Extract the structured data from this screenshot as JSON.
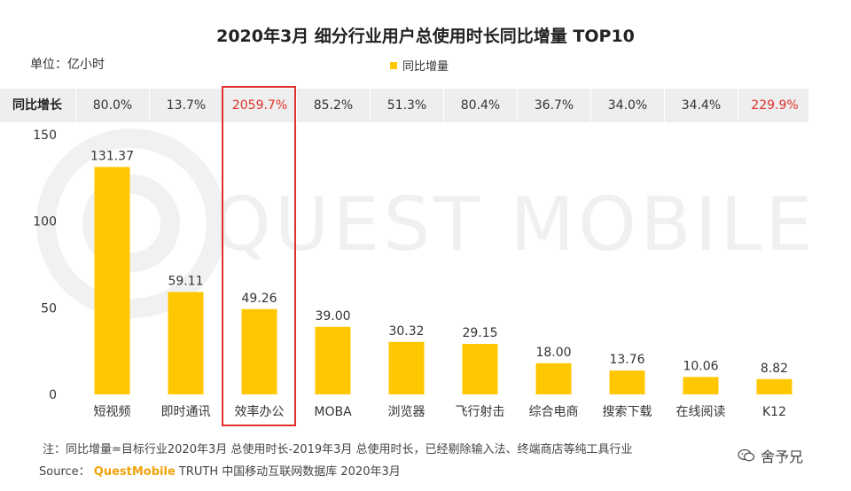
{
  "header": {
    "title": "2020年3月 细分行业用户总使用时长同比增量 TOP10",
    "unit": "单位：亿小时",
    "legend_label": "同比增量"
  },
  "growth_row": {
    "header": "同比增长",
    "values": [
      "80.0%",
      "13.7%",
      "2059.7%",
      "85.2%",
      "51.3%",
      "80.4%",
      "36.7%",
      "34.0%",
      "34.4%",
      "229.9%"
    ],
    "highlighted": [
      2,
      9
    ]
  },
  "chart_data": {
    "type": "bar",
    "categories": [
      "短视频",
      "即时通讯",
      "效率办公",
      "MOBA",
      "浏览器",
      "飞行射击",
      "综合电商",
      "搜索下载",
      "在线阅读",
      "K12"
    ],
    "values": [
      131.37,
      59.11,
      49.26,
      39.0,
      30.32,
      29.15,
      18.0,
      13.76,
      10.06,
      8.82
    ],
    "value_labels": [
      "131.37",
      "59.11",
      "49.26",
      "39.00",
      "30.32",
      "29.15",
      "18.00",
      "13.76",
      "10.06",
      "8.82"
    ],
    "title": "2020年3月 细分行业用户总使用时长同比增量 TOP10",
    "ylim": [
      0,
      150
    ],
    "yticks": [
      0,
      50,
      100,
      150
    ],
    "legend": "top-center",
    "grid": false,
    "highlighted_category": "效率办公"
  },
  "watermark": "QUEST MOBILE",
  "footer": {
    "note": "注：同比增量=目标行业2020年3月 总使用时长-2019年3月 总使用时长，已经剔除输入法、终端商店等纯工具行业",
    "source_prefix": "Source：",
    "source_brand": "QuestMobile",
    "source_rest": " TRUTH 中国移动互联网数据库 2020年3月",
    "wechat_label": "舍予兄"
  },
  "colors": {
    "bar": "#ffc700",
    "highlight": "#e0302a",
    "row_bg": "#eeeeee",
    "watermark": "#f0f0f0"
  }
}
